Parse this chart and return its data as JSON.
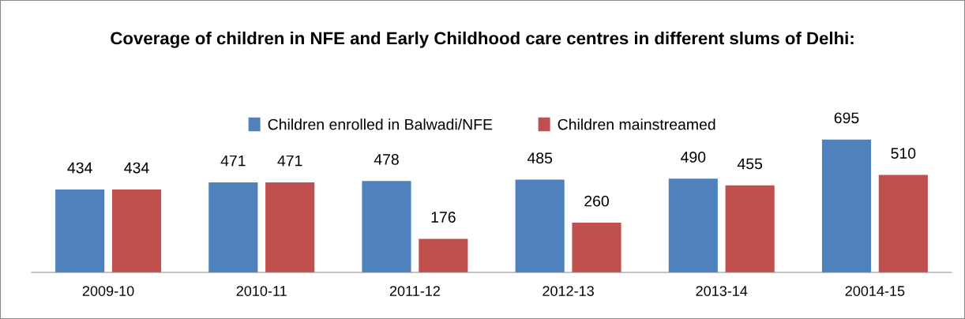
{
  "chart_data": {
    "type": "bar",
    "title": "Coverage of children in NFE and Early Childhood care centres in different slums of Delhi:",
    "categories": [
      "2009-10",
      "2010-11",
      "2011-12",
      "2012-13",
      "2013-14",
      "20014-15"
    ],
    "series": [
      {
        "name": "Children enrolled in Balwadi/NFE",
        "color": "#4f81bd",
        "values": [
          434,
          471,
          478,
          485,
          490,
          695
        ]
      },
      {
        "name": "Children mainstreamed",
        "color": "#c0504d",
        "values": [
          434,
          471,
          176,
          260,
          455,
          510
        ]
      }
    ],
    "data_labels": true,
    "legend": "top",
    "grid": false
  }
}
